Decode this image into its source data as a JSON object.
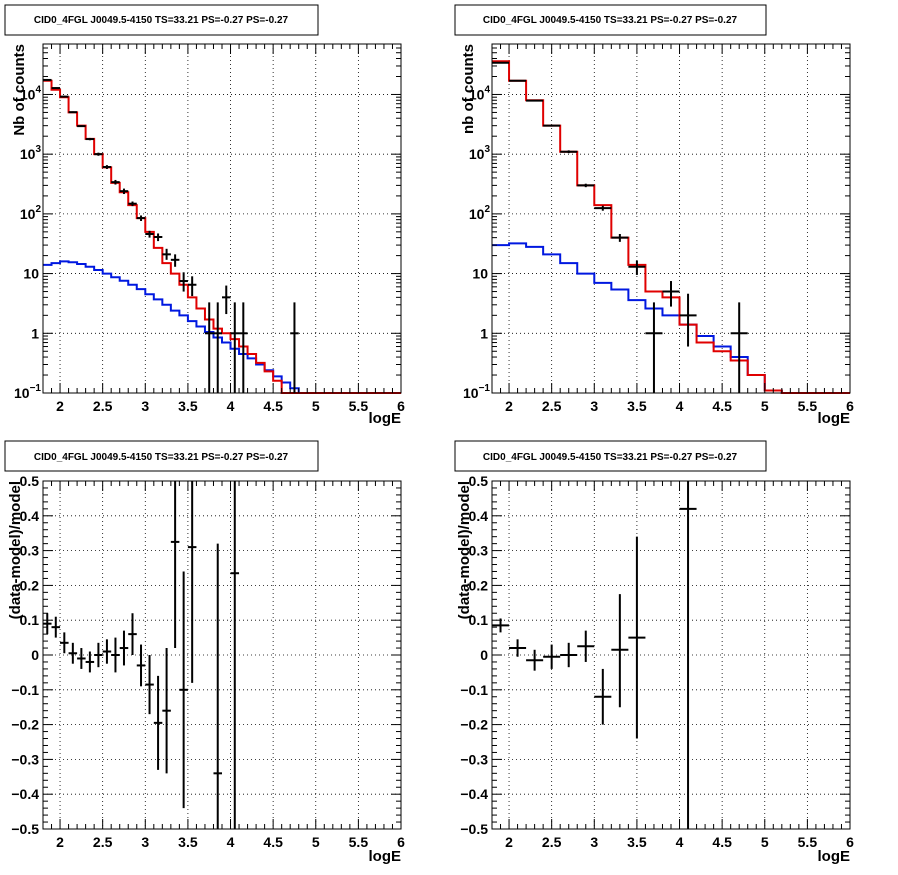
{
  "colors": {
    "model_total": "#e00000",
    "model_component": "#0018e0",
    "data_points": "#000000",
    "grid": "#000000",
    "frame": "#000000"
  },
  "chart_data": [
    {
      "type": "line",
      "title": "CID0_4FGL J0049.5-4150 TS=33.21 PS=-0.27 PS=-0.27",
      "xlabel": "logE",
      "ylabel": "Nb of counts",
      "xlim": [
        1.8,
        6.0
      ],
      "ylim": [
        0.1,
        70000
      ],
      "yscale": "log",
      "grid": true,
      "xticks": [
        2,
        2.5,
        3,
        3.5,
        4,
        4.5,
        5,
        5.5,
        6
      ],
      "xtick_labels": [
        "2",
        "2.5",
        "3",
        "3.5",
        "4",
        "4.5",
        "5",
        "5.5",
        "6"
      ],
      "yticks": [
        0.1,
        1,
        10,
        100,
        1000,
        10000
      ],
      "ytick_labels": [
        [
          "10",
          "−1"
        ],
        [
          "1",
          ""
        ],
        [
          "10",
          ""
        ],
        [
          "10",
          "2"
        ],
        [
          "10",
          "3"
        ],
        [
          "10",
          "4"
        ]
      ],
      "series": [
        {
          "style": "step",
          "color_key": "model_total",
          "edges": [
            1.8,
            1.9,
            2.0,
            2.1,
            2.2,
            2.3,
            2.4,
            2.5,
            2.6,
            2.7,
            2.8,
            2.9,
            3.0,
            3.1,
            3.2,
            3.3,
            3.4,
            3.5,
            3.6,
            3.7,
            3.8,
            3.9,
            4.0,
            4.1,
            4.2,
            4.3,
            4.4,
            4.5,
            4.6,
            4.7,
            4.8,
            4.9,
            5.0,
            5.1,
            5.2,
            5.3,
            5.4,
            5.5,
            5.6,
            5.7,
            5.8,
            5.9,
            6.0
          ],
          "values": [
            17000,
            12000,
            9000,
            5000,
            3000,
            1800,
            1000,
            600,
            330,
            230,
            140,
            85,
            50,
            27,
            15,
            10,
            6.5,
            4,
            2.6,
            1.7,
            1.2,
            1.0,
            0.8,
            0.6,
            0.45,
            0.32,
            0.23,
            0.16,
            0.1,
            0.1,
            0.1,
            0.1,
            0.1,
            0.1,
            0.1,
            0.1,
            0.1,
            0.1,
            0.1,
            0.1,
            0.1,
            0.1
          ]
        },
        {
          "style": "step",
          "color_key": "model_component",
          "edges": [
            1.8,
            1.9,
            2.0,
            2.1,
            2.2,
            2.3,
            2.4,
            2.5,
            2.6,
            2.7,
            2.8,
            2.9,
            3.0,
            3.1,
            3.2,
            3.3,
            3.4,
            3.5,
            3.6,
            3.7,
            3.8,
            3.9,
            4.0,
            4.1,
            4.2,
            4.3,
            4.4,
            4.5,
            4.6,
            4.7,
            4.8,
            4.9,
            5.0,
            5.1,
            5.2,
            5.3,
            5.4,
            5.5,
            5.6,
            5.7,
            5.8,
            5.9,
            6.0
          ],
          "values": [
            14,
            15,
            16,
            15.5,
            14.5,
            13,
            11.5,
            10,
            8.7,
            7.6,
            6.5,
            5.5,
            4.5,
            3.7,
            3.0,
            2.4,
            2.0,
            1.6,
            1.3,
            1.05,
            0.85,
            0.7,
            0.55,
            0.45,
            0.38,
            0.3,
            0.24,
            0.19,
            0.15,
            0.12,
            0.1,
            0.1,
            0.1,
            0.1,
            0.1,
            0.1,
            0.1,
            0.1,
            0.1,
            0.1,
            0.1,
            0.1
          ]
        }
      ],
      "points": [
        {
          "x": 1.85,
          "y": 17500,
          "xerr": 0.05,
          "ylo": 17100,
          "yhi": 17900
        },
        {
          "x": 1.95,
          "y": 12800,
          "xerr": 0.05,
          "ylo": 12450,
          "yhi": 13150
        },
        {
          "x": 2.05,
          "y": 9200,
          "xerr": 0.05,
          "ylo": 8900,
          "yhi": 9500
        },
        {
          "x": 2.15,
          "y": 5050,
          "xerr": 0.05,
          "ylo": 4900,
          "yhi": 5200
        },
        {
          "x": 2.25,
          "y": 2950,
          "xerr": 0.05,
          "ylo": 2850,
          "yhi": 3050
        },
        {
          "x": 2.35,
          "y": 1790,
          "xerr": 0.05,
          "ylo": 1710,
          "yhi": 1870
        },
        {
          "x": 2.45,
          "y": 1000,
          "xerr": 0.05,
          "ylo": 940,
          "yhi": 1060
        },
        {
          "x": 2.55,
          "y": 610,
          "xerr": 0.05,
          "ylo": 565,
          "yhi": 655
        },
        {
          "x": 2.65,
          "y": 340,
          "xerr": 0.05,
          "ylo": 310,
          "yhi": 370
        },
        {
          "x": 2.75,
          "y": 240,
          "xerr": 0.05,
          "ylo": 215,
          "yhi": 265
        },
        {
          "x": 2.85,
          "y": 148,
          "xerr": 0.05,
          "ylo": 135,
          "yhi": 161
        },
        {
          "x": 2.95,
          "y": 85,
          "xerr": 0.05,
          "ylo": 76,
          "yhi": 94
        },
        {
          "x": 3.05,
          "y": 46,
          "xerr": 0.05,
          "ylo": 40,
          "yhi": 52
        },
        {
          "x": 3.15,
          "y": 41,
          "xerr": 0.05,
          "ylo": 35,
          "yhi": 47
        },
        {
          "x": 3.25,
          "y": 21,
          "xerr": 0.05,
          "ylo": 17,
          "yhi": 26
        },
        {
          "x": 3.35,
          "y": 17,
          "xerr": 0.05,
          "ylo": 13,
          "yhi": 21
        },
        {
          "x": 3.45,
          "y": 7.5,
          "xerr": 0.05,
          "ylo": 5,
          "yhi": 10.5
        },
        {
          "x": 3.55,
          "y": 6.5,
          "xerr": 0.05,
          "ylo": 4.2,
          "yhi": 9
        },
        {
          "x": 3.75,
          "y": 1,
          "xerr": 0.05,
          "ylo": 0.1,
          "yhi": 3.3
        },
        {
          "x": 3.85,
          "y": 1,
          "xerr": 0.05,
          "ylo": 0.1,
          "yhi": 3.3
        },
        {
          "x": 3.95,
          "y": 4,
          "xerr": 0.05,
          "ylo": 2.1,
          "yhi": 6.3
        },
        {
          "x": 4.05,
          "y": 1,
          "xerr": 0.05,
          "ylo": 0.1,
          "yhi": 3.3
        },
        {
          "x": 4.15,
          "y": 1,
          "xerr": 0.05,
          "ylo": 0.1,
          "yhi": 3.3
        },
        {
          "x": 4.75,
          "y": 1,
          "xerr": 0.05,
          "ylo": 0.1,
          "yhi": 3.3
        }
      ]
    },
    {
      "type": "line",
      "title": "CID0_4FGL J0049.5-4150 TS=33.21 PS=-0.27 PS=-0.27",
      "xlabel": "logE",
      "ylabel": "nb of counts",
      "xlim": [
        1.8,
        6.0
      ],
      "ylim": [
        0.1,
        70000
      ],
      "yscale": "log",
      "grid": true,
      "xticks": [
        2,
        2.5,
        3,
        3.5,
        4,
        4.5,
        5,
        5.5,
        6
      ],
      "xtick_labels": [
        "2",
        "2.5",
        "3",
        "3.5",
        "4",
        "4.5",
        "5",
        "5.5",
        "6"
      ],
      "yticks": [
        0.1,
        1,
        10,
        100,
        1000,
        10000
      ],
      "ytick_labels": [
        [
          "10",
          "−1"
        ],
        [
          "1",
          ""
        ],
        [
          "10",
          ""
        ],
        [
          "10",
          "2"
        ],
        [
          "10",
          "3"
        ],
        [
          "10",
          "4"
        ]
      ],
      "series": [
        {
          "style": "step",
          "color_key": "model_total",
          "edges": [
            1.8,
            2.0,
            2.2,
            2.4,
            2.6,
            2.8,
            3.0,
            3.2,
            3.4,
            3.6,
            3.8,
            4.0,
            4.2,
            4.4,
            4.6,
            4.8,
            5.0,
            5.2,
            5.4,
            5.6,
            5.8,
            6.0
          ],
          "values": [
            36000,
            17000,
            8000,
            3000,
            1100,
            300,
            140,
            40,
            14,
            5,
            4,
            1.4,
            0.7,
            0.5,
            0.35,
            0.2,
            0.11,
            0.1,
            0.1,
            0.1,
            0.1
          ]
        },
        {
          "style": "step",
          "color_key": "model_component",
          "edges": [
            1.8,
            2.0,
            2.2,
            2.4,
            2.6,
            2.8,
            3.0,
            3.2,
            3.4,
            3.6,
            3.8,
            4.0,
            4.2,
            4.4,
            4.6,
            4.8,
            5.0,
            5.2,
            5.4,
            5.6,
            5.8,
            6.0
          ],
          "values": [
            30,
            32,
            28,
            21,
            15,
            10,
            7,
            5.4,
            3.6,
            2.6,
            2.0,
            1.4,
            0.9,
            0.6,
            0.4,
            0.2,
            0.11,
            0.1,
            0.1,
            0.1,
            0.1
          ]
        }
      ],
      "points": [
        {
          "x": 1.9,
          "y": 34000,
          "xerr": 0.1,
          "ylo": 33600,
          "yhi": 34400
        },
        {
          "x": 2.1,
          "y": 17000,
          "xerr": 0.1,
          "ylo": 16700,
          "yhi": 17300
        },
        {
          "x": 2.3,
          "y": 7900,
          "xerr": 0.1,
          "ylo": 7700,
          "yhi": 8100
        },
        {
          "x": 2.5,
          "y": 3000,
          "xerr": 0.1,
          "ylo": 2900,
          "yhi": 3100
        },
        {
          "x": 2.7,
          "y": 1100,
          "xerr": 0.1,
          "ylo": 1040,
          "yhi": 1160
        },
        {
          "x": 2.9,
          "y": 300,
          "xerr": 0.1,
          "ylo": 280,
          "yhi": 320
        },
        {
          "x": 3.1,
          "y": 125,
          "xerr": 0.1,
          "ylo": 113,
          "yhi": 137
        },
        {
          "x": 3.3,
          "y": 40,
          "xerr": 0.1,
          "ylo": 34,
          "yhi": 46
        },
        {
          "x": 3.5,
          "y": 13,
          "xerr": 0.1,
          "ylo": 9.5,
          "yhi": 16.5
        },
        {
          "x": 3.7,
          "y": 1,
          "xerr": 0.1,
          "ylo": 0.1,
          "yhi": 3.3
        },
        {
          "x": 3.9,
          "y": 5,
          "xerr": 0.1,
          "ylo": 2.8,
          "yhi": 7.5
        },
        {
          "x": 4.1,
          "y": 2,
          "xerr": 0.1,
          "ylo": 0.6,
          "yhi": 4.6
        },
        {
          "x": 4.7,
          "y": 1,
          "xerr": 0.1,
          "ylo": 0.1,
          "yhi": 3.3
        }
      ]
    },
    {
      "type": "scatter",
      "title": "CID0_4FGL J0049.5-4150 TS=33.21 PS=-0.27 PS=-0.27",
      "xlabel": "logE",
      "ylabel": "(data-model)/model",
      "xlim": [
        1.8,
        6.0
      ],
      "ylim": [
        -0.5,
        0.5
      ],
      "yscale": "linear",
      "grid": true,
      "xticks": [
        2,
        2.5,
        3,
        3.5,
        4,
        4.5,
        5,
        5.5,
        6
      ],
      "xtick_labels": [
        "2",
        "2.5",
        "3",
        "3.5",
        "4",
        "4.5",
        "5",
        "5.5",
        "6"
      ],
      "yticks": [
        -0.5,
        -0.4,
        -0.3,
        -0.2,
        -0.1,
        0,
        0.1,
        0.2,
        0.3,
        0.4,
        0.5
      ],
      "ytick_labels": [
        [
          "−0.5",
          ""
        ],
        [
          "−0.4",
          ""
        ],
        [
          "−0.3",
          ""
        ],
        [
          "−0.2",
          ""
        ],
        [
          "−0.1",
          ""
        ],
        [
          "0",
          ""
        ],
        [
          "0.1",
          ""
        ],
        [
          "0.2",
          ""
        ],
        [
          "0.3",
          ""
        ],
        [
          "0.4",
          ""
        ],
        [
          "0.5",
          ""
        ]
      ],
      "series": [],
      "points": [
        {
          "x": 1.85,
          "y": 0.09,
          "xerr": 0.05,
          "ylo": 0.06,
          "yhi": 0.12
        },
        {
          "x": 1.95,
          "y": 0.08,
          "xerr": 0.05,
          "ylo": 0.05,
          "yhi": 0.11
        },
        {
          "x": 2.05,
          "y": 0.035,
          "xerr": 0.05,
          "ylo": 0.005,
          "yhi": 0.065
        },
        {
          "x": 2.15,
          "y": 0.005,
          "xerr": 0.05,
          "ylo": -0.025,
          "yhi": 0.035
        },
        {
          "x": 2.25,
          "y": -0.01,
          "xerr": 0.05,
          "ylo": -0.04,
          "yhi": 0.02
        },
        {
          "x": 2.35,
          "y": -0.02,
          "xerr": 0.05,
          "ylo": -0.05,
          "yhi": 0.01
        },
        {
          "x": 2.45,
          "y": 0.0,
          "xerr": 0.05,
          "ylo": -0.035,
          "yhi": 0.035
        },
        {
          "x": 2.55,
          "y": 0.01,
          "xerr": 0.05,
          "ylo": -0.025,
          "yhi": 0.045
        },
        {
          "x": 2.65,
          "y": 0.0,
          "xerr": 0.05,
          "ylo": -0.05,
          "yhi": 0.05
        },
        {
          "x": 2.75,
          "y": 0.02,
          "xerr": 0.05,
          "ylo": -0.03,
          "yhi": 0.07
        },
        {
          "x": 2.85,
          "y": 0.06,
          "xerr": 0.05,
          "ylo": 0.0,
          "yhi": 0.12
        },
        {
          "x": 2.95,
          "y": -0.03,
          "xerr": 0.05,
          "ylo": -0.09,
          "yhi": 0.03
        },
        {
          "x": 3.05,
          "y": -0.085,
          "xerr": 0.05,
          "ylo": -0.17,
          "yhi": 0.0
        },
        {
          "x": 3.15,
          "y": -0.195,
          "xerr": 0.05,
          "ylo": -0.33,
          "yhi": -0.06
        },
        {
          "x": 3.25,
          "y": -0.16,
          "xerr": 0.05,
          "ylo": -0.34,
          "yhi": 0.02
        },
        {
          "x": 3.35,
          "y": 0.325,
          "xerr": 0.05,
          "ylo": 0.02,
          "yhi": 0.5
        },
        {
          "x": 3.45,
          "y": -0.1,
          "xerr": 0.05,
          "ylo": -0.44,
          "yhi": 0.24
        },
        {
          "x": 3.55,
          "y": 0.31,
          "xerr": 0.05,
          "ylo": -0.08,
          "yhi": 0.5
        },
        {
          "x": 3.85,
          "y": -0.34,
          "xerr": 0.05,
          "ylo": -0.5,
          "yhi": 0.32
        },
        {
          "x": 4.05,
          "y": 0.235,
          "xerr": 0.05,
          "ylo": -0.5,
          "yhi": 0.5
        }
      ]
    },
    {
      "type": "scatter",
      "title": "CID0_4FGL J0049.5-4150 TS=33.21 PS=-0.27 PS=-0.27",
      "xlabel": "logE",
      "ylabel": "(data-model)/model",
      "xlim": [
        1.8,
        6.0
      ],
      "ylim": [
        -0.5,
        0.5
      ],
      "yscale": "linear",
      "grid": true,
      "xticks": [
        2,
        2.5,
        3,
        3.5,
        4,
        4.5,
        5,
        5.5,
        6
      ],
      "xtick_labels": [
        "2",
        "2.5",
        "3",
        "3.5",
        "4",
        "4.5",
        "5",
        "5.5",
        "6"
      ],
      "yticks": [
        -0.5,
        -0.4,
        -0.3,
        -0.2,
        -0.1,
        0,
        0.1,
        0.2,
        0.3,
        0.4,
        0.5
      ],
      "ytick_labels": [
        [
          "−0.5",
          ""
        ],
        [
          "−0.4",
          ""
        ],
        [
          "−0.3",
          ""
        ],
        [
          "−0.2",
          ""
        ],
        [
          "−0.1",
          ""
        ],
        [
          "0",
          ""
        ],
        [
          "0.1",
          ""
        ],
        [
          "0.2",
          ""
        ],
        [
          "0.3",
          ""
        ],
        [
          "0.4",
          ""
        ],
        [
          "0.5",
          ""
        ]
      ],
      "series": [],
      "points": [
        {
          "x": 1.9,
          "y": 0.085,
          "xerr": 0.1,
          "ylo": 0.065,
          "yhi": 0.105
        },
        {
          "x": 2.1,
          "y": 0.02,
          "xerr": 0.1,
          "ylo": -0.005,
          "yhi": 0.045
        },
        {
          "x": 2.3,
          "y": -0.015,
          "xerr": 0.1,
          "ylo": -0.045,
          "yhi": 0.015
        },
        {
          "x": 2.5,
          "y": -0.005,
          "xerr": 0.1,
          "ylo": -0.04,
          "yhi": 0.03
        },
        {
          "x": 2.7,
          "y": 0.0,
          "xerr": 0.1,
          "ylo": -0.035,
          "yhi": 0.035
        },
        {
          "x": 2.9,
          "y": 0.025,
          "xerr": 0.1,
          "ylo": -0.02,
          "yhi": 0.07
        },
        {
          "x": 3.1,
          "y": -0.12,
          "xerr": 0.1,
          "ylo": -0.2,
          "yhi": -0.04
        },
        {
          "x": 3.3,
          "y": 0.015,
          "xerr": 0.1,
          "ylo": -0.15,
          "yhi": 0.175
        },
        {
          "x": 3.5,
          "y": 0.05,
          "xerr": 0.1,
          "ylo": -0.24,
          "yhi": 0.34
        },
        {
          "x": 4.1,
          "y": 0.42,
          "xerr": 0.1,
          "ylo": -0.5,
          "yhi": 0.5
        }
      ]
    }
  ]
}
